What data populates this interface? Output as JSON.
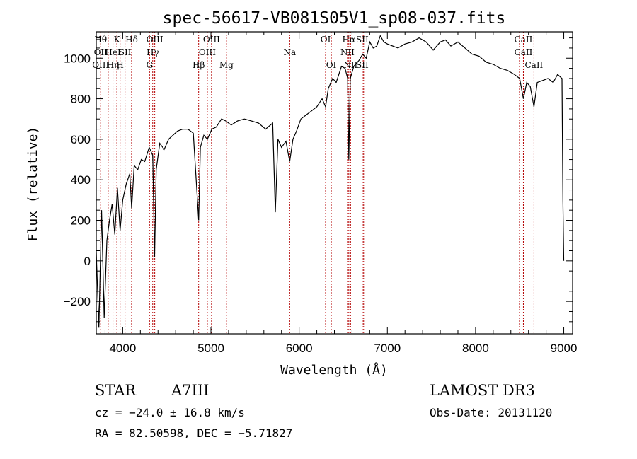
{
  "chart_data": {
    "type": "line",
    "title": "spec-56617-VB081S05V1_sp08-037.fits",
    "xlabel": "Wavelength (Å)",
    "ylabel": "Flux (relative)",
    "xlim": [
      3700,
      9100
    ],
    "ylim": [
      -360,
      1130
    ],
    "xticks": [
      4000,
      5000,
      6000,
      7000,
      8000,
      9000
    ],
    "yticks": [
      -200,
      0,
      200,
      400,
      600,
      800,
      1000
    ],
    "series": [
      {
        "name": "flux",
        "x": [
          3700,
          3730,
          3760,
          3790,
          3820,
          3850,
          3880,
          3910,
          3940,
          3970,
          4000,
          4040,
          4080,
          4101,
          4130,
          4170,
          4210,
          4250,
          4300,
          4340,
          4361,
          4380,
          4420,
          4470,
          4520,
          4570,
          4620,
          4680,
          4740,
          4800,
          4861,
          4880,
          4920,
          4960,
          5010,
          5060,
          5120,
          5170,
          5230,
          5300,
          5380,
          5460,
          5540,
          5620,
          5700,
          5730,
          5760,
          5800,
          5850,
          5893,
          5930,
          5970,
          6020,
          6080,
          6140,
          6200,
          6260,
          6300,
          6330,
          6380,
          6420,
          6480,
          6520,
          6550,
          6563,
          6580,
          6620,
          6680,
          6720,
          6760,
          6800,
          6840,
          6880,
          6920,
          6960,
          7000,
          7060,
          7120,
          7200,
          7280,
          7360,
          7440,
          7520,
          7600,
          7660,
          7720,
          7800,
          7880,
          7960,
          8040,
          8120,
          8200,
          8280,
          8360,
          8440,
          8500,
          8542,
          8580,
          8620,
          8662,
          8700,
          8760,
          8820,
          8880,
          8930,
          8980,
          8990,
          9000
        ],
        "y": [
          40,
          -330,
          250,
          -280,
          100,
          200,
          280,
          130,
          360,
          150,
          300,
          380,
          430,
          260,
          470,
          450,
          500,
          490,
          560,
          520,
          20,
          450,
          580,
          550,
          600,
          620,
          640,
          650,
          650,
          630,
          200,
          560,
          620,
          600,
          650,
          660,
          700,
          690,
          670,
          690,
          700,
          690,
          680,
          650,
          680,
          240,
          600,
          560,
          590,
          490,
          600,
          640,
          700,
          720,
          740,
          760,
          800,
          760,
          850,
          900,
          880,
          960,
          950,
          900,
          500,
          900,
          960,
          990,
          1020,
          1000,
          1080,
          1050,
          1060,
          1110,
          1080,
          1070,
          1060,
          1050,
          1070,
          1080,
          1100,
          1080,
          1040,
          1080,
          1090,
          1060,
          1080,
          1050,
          1020,
          1010,
          980,
          970,
          950,
          940,
          920,
          900,
          800,
          880,
          860,
          760,
          880,
          890,
          900,
          880,
          920,
          900,
          300,
          0
        ]
      }
    ],
    "lines": [
      {
        "wl": 3750,
        "top": "Hθ",
        "mid": "OII",
        "bot": "OIII"
      },
      {
        "wl": 3835,
        "top": "",
        "mid": "",
        "bot": ""
      },
      {
        "wl": 3889,
        "top": "",
        "mid": "HeI",
        "bot": "Hη"
      },
      {
        "wl": 3934,
        "top": "K",
        "mid": "",
        "bot": ""
      },
      {
        "wl": 3970,
        "top": "",
        "mid": "",
        "bot": "H"
      },
      {
        "wl": 4026,
        "top": "",
        "mid": "SII",
        "bot": ""
      },
      {
        "wl": 4101,
        "top": "Hδ",
        "mid": "",
        "bot": ""
      },
      {
        "wl": 4304,
        "top": "",
        "mid": "",
        "bot": "G"
      },
      {
        "wl": 4340,
        "top": "",
        "mid": "Hγ",
        "bot": ""
      },
      {
        "wl": 4363,
        "top": "OIII",
        "mid": "",
        "bot": ""
      },
      {
        "wl": 4861,
        "top": "",
        "mid": "",
        "bot": "Hβ"
      },
      {
        "wl": 4959,
        "top": "",
        "mid": "OIII",
        "bot": ""
      },
      {
        "wl": 5007,
        "top": "OIII",
        "mid": "",
        "bot": ""
      },
      {
        "wl": 5175,
        "top": "",
        "mid": "",
        "bot": "Mg"
      },
      {
        "wl": 5893,
        "top": "",
        "mid": "Na",
        "bot": ""
      },
      {
        "wl": 6300,
        "top": "OI",
        "mid": "",
        "bot": ""
      },
      {
        "wl": 6364,
        "top": "",
        "mid": "",
        "bot": "OI"
      },
      {
        "wl": 6548,
        "top": "",
        "mid": "NII",
        "bot": ""
      },
      {
        "wl": 6563,
        "top": "Hα",
        "mid": "",
        "bot": ""
      },
      {
        "wl": 6583,
        "top": "",
        "mid": "",
        "bot": "NII"
      },
      {
        "wl": 6716,
        "top": "SII",
        "mid": "",
        "bot": "SII"
      },
      {
        "wl": 6731,
        "top": "",
        "mid": "",
        "bot": ""
      },
      {
        "wl": 8498,
        "top": "",
        "mid": "",
        "bot": ""
      },
      {
        "wl": 8542,
        "top": "CaII",
        "mid": "CaII",
        "bot": ""
      },
      {
        "wl": 8662,
        "top": "",
        "mid": "",
        "bot": "CaII"
      }
    ]
  },
  "info": {
    "object_class": "STAR",
    "subclass": "A7III",
    "survey": "LAMOST DR3",
    "cz": "cz = −24.0 ± 16.8 km/s",
    "obs_date": "Obs-Date: 20131120",
    "coords": "RA =  82.50598, DEC =  −5.71827"
  }
}
